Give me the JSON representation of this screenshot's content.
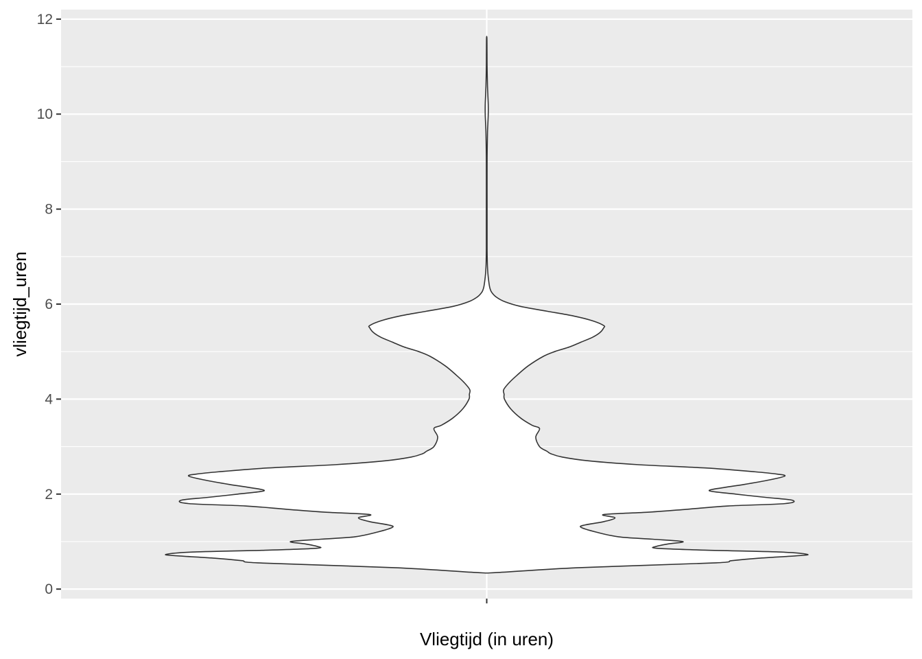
{
  "chart_data": {
    "type": "violin",
    "xlabel": "Vliegtijd (in uren)",
    "ylabel": "vliegtijd_uren",
    "ylim": [
      -0.2,
      12.2
    ],
    "y_ticks": [
      0,
      2,
      4,
      6,
      8,
      10,
      12
    ],
    "grid": true,
    "legend": "none",
    "colors": {
      "panel": "#ebebeb",
      "grid": "#ffffff",
      "fill": "#ffffff",
      "outline": "#333333",
      "tick_text": "#4d4d4d"
    },
    "violin_profile": {
      "y": [
        0.35,
        0.45,
        0.55,
        0.6,
        0.65,
        0.7,
        0.73,
        0.78,
        0.82,
        0.86,
        0.9,
        0.95,
        1.0,
        1.05,
        1.1,
        1.2,
        1.3,
        1.35,
        1.42,
        1.5,
        1.57,
        1.62,
        1.68,
        1.75,
        1.8,
        1.87,
        1.93,
        2.0,
        2.07,
        2.14,
        2.2,
        2.3,
        2.38,
        2.42,
        2.47,
        2.55,
        2.62,
        2.7,
        2.78,
        2.85,
        2.9,
        3.0,
        3.2,
        3.38,
        3.45,
        3.6,
        3.8,
        4.0,
        4.1,
        4.2,
        4.35,
        4.5,
        4.7,
        4.9,
        5.0,
        5.1,
        5.2,
        5.3,
        5.4,
        5.5,
        5.55,
        5.65,
        5.75,
        5.85,
        5.95,
        6.05,
        6.15,
        6.25,
        6.35,
        6.5,
        6.65,
        6.78,
        6.9,
        7.2,
        8.0,
        9.0,
        9.6,
        9.8,
        10.0,
        10.2,
        10.4,
        10.6,
        11.0,
        11.3,
        11.6
      ],
      "half_width": [
        0.03,
        0.24,
        0.6,
        0.65,
        0.72,
        0.82,
        0.85,
        0.78,
        0.58,
        0.45,
        0.45,
        0.48,
        0.52,
        0.44,
        0.35,
        0.29,
        0.25,
        0.26,
        0.31,
        0.34,
        0.31,
        0.43,
        0.53,
        0.64,
        0.79,
        0.81,
        0.74,
        0.66,
        0.59,
        0.63,
        0.68,
        0.75,
        0.79,
        0.77,
        0.71,
        0.58,
        0.4,
        0.27,
        0.2,
        0.17,
        0.16,
        0.14,
        0.13,
        0.14,
        0.12,
        0.09,
        0.063,
        0.047,
        0.046,
        0.045,
        0.06,
        0.08,
        0.11,
        0.15,
        0.18,
        0.22,
        0.25,
        0.28,
        0.3,
        0.31,
        0.31,
        0.28,
        0.23,
        0.16,
        0.09,
        0.048,
        0.025,
        0.013,
        0.008,
        0.005,
        0.003,
        0.002,
        0.0015,
        0.001,
        0.001,
        0.001,
        0.002,
        0.003,
        0.004,
        0.004,
        0.003,
        0.002,
        0.001,
        0.0008,
        0.0005
      ]
    }
  }
}
